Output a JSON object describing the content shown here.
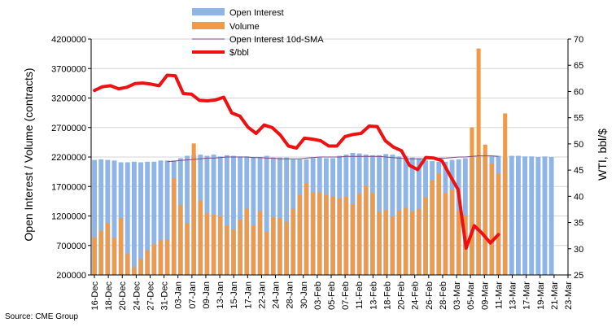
{
  "chart_data": {
    "type": "bar",
    "source": "Source: CME Group",
    "left_axis_title": "Open Interest / Volume (contracts)",
    "right_axis_title": "WTI, bbl/$",
    "left_ylim": [
      200000,
      4200000
    ],
    "left_ticks": [
      "200000",
      "700000",
      "1200000",
      "1700000",
      "2200000",
      "2700000",
      "3200000",
      "3700000",
      "4200000"
    ],
    "right_ylim": [
      25,
      70
    ],
    "right_ticks": [
      "25",
      "30",
      "35",
      "40",
      "45",
      "50",
      "55",
      "60",
      "65",
      "70"
    ],
    "x_labels": [
      "16-Dec",
      "18-Dec",
      "20-Dec",
      "24-Dec",
      "27-Dec",
      "31-Dec",
      "03-Jan",
      "07-Jan",
      "09-Jan",
      "13-Jan",
      "15-Jan",
      "17-Jan",
      "22-Jan",
      "24-Jan",
      "28-Jan",
      "30-Jan",
      "03-Feb",
      "05-Feb",
      "07-Feb",
      "11-Feb",
      "13-Feb",
      "18-Feb",
      "20-Feb",
      "24-Feb",
      "26-Feb",
      "28-Feb",
      "03-Mar",
      "05-Mar",
      "09-Mar",
      "11-Mar",
      "13-Mar",
      "17-Mar",
      "19-Mar",
      "21-Mar",
      "23-Mar"
    ],
    "legend": {
      "open_interest": "Open Interest",
      "volume": "Volume",
      "sma": "Open Interest 10d-SMA",
      "price": "$/bbl"
    },
    "colors": {
      "open_interest": "#8fb5e6",
      "volume": "#f09a48",
      "sma": "#7a4a8c",
      "price": "#ee1111"
    },
    "series": {
      "open_interest": [
        2150000,
        2160000,
        2150000,
        2140000,
        2110000,
        2110000,
        2120000,
        2110000,
        2120000,
        2120000,
        2140000,
        2140000,
        2140000,
        2180000,
        2220000,
        2230000,
        2240000,
        2220000,
        2240000,
        2210000,
        2230000,
        2220000,
        2210000,
        2210000,
        2200000,
        2200000,
        2220000,
        2190000,
        2190000,
        2190000,
        2160000,
        2160000,
        2160000,
        2180000,
        2190000,
        2180000,
        2180000,
        2220000,
        2240000,
        2270000,
        2260000,
        2240000,
        2230000,
        2230000,
        2250000,
        2240000,
        2210000,
        2220000,
        2190000,
        2180000,
        2140000,
        2130000,
        2120000,
        2120000,
        2150000,
        2160000,
        2180000,
        2190000,
        2200000,
        2210000,
        2220000,
        2220000,
        2190000,
        2220000,
        2220000,
        2210000,
        2210000,
        2200000,
        2210000,
        2200000
      ],
      "volume": [
        840000,
        950000,
        1080000,
        830000,
        1160000,
        560000,
        330000,
        470000,
        620000,
        720000,
        790000,
        800000,
        1840000,
        1380000,
        1080000,
        2430000,
        1460000,
        1250000,
        1220000,
        1200000,
        1040000,
        970000,
        1140000,
        1320000,
        1040000,
        1280000,
        930000,
        1180000,
        1160000,
        1100000,
        1320000,
        1560000,
        1760000,
        1600000,
        1600000,
        1560000,
        1530000,
        1500000,
        1530000,
        1400000,
        1580000,
        1710000,
        1590000,
        1270000,
        1300000,
        1190000,
        1290000,
        1340000,
        1280000,
        1320000,
        1520000,
        1800000,
        1920000,
        1590000,
        1650000,
        1290000,
        1210000,
        2700000,
        4040000,
        2410000,
        2090000,
        1920000,
        2940000,
        null,
        null,
        null,
        null,
        null,
        null,
        null
      ],
      "sma": [
        null,
        null,
        null,
        null,
        null,
        null,
        null,
        null,
        null,
        null,
        null,
        2120000,
        2130000,
        2140000,
        2150000,
        2160000,
        2170000,
        2180000,
        2180000,
        2190000,
        2200000,
        2200000,
        2200000,
        2200000,
        2190000,
        2190000,
        2180000,
        2180000,
        2170000,
        2170000,
        2170000,
        2170000,
        2180000,
        2190000,
        2200000,
        2200000,
        2200000,
        2200000,
        2210000,
        2210000,
        2210000,
        2210000,
        2210000,
        2210000,
        2200000,
        2190000,
        2180000,
        2170000,
        2170000,
        2170000,
        2170000,
        2170000,
        2180000,
        2180000,
        2190000,
        2200000,
        2200000,
        2210000,
        2220000,
        2220000,
        2220000,
        2210000,
        null,
        null,
        null,
        null,
        null,
        null,
        null,
        null
      ],
      "price": [
        60.2,
        60.9,
        61.1,
        60.5,
        60.8,
        61.5,
        61.6,
        61.4,
        61.1,
        63.1,
        63.0,
        59.6,
        59.5,
        58.3,
        58.2,
        58.4,
        58.9,
        55.9,
        55.3,
        53.2,
        52.0,
        53.6,
        53.1,
        51.7,
        49.6,
        49.2,
        51.1,
        50.9,
        50.6,
        49.6,
        49.6,
        51.4,
        51.8,
        52.0,
        53.4,
        53.3,
        50.6,
        49.4,
        48.7,
        45.9,
        45.1,
        47.4,
        47.3,
        46.8,
        44.0,
        41.3,
        30.1,
        34.4,
        32.9,
        31.1,
        32.7
      ]
    }
  }
}
